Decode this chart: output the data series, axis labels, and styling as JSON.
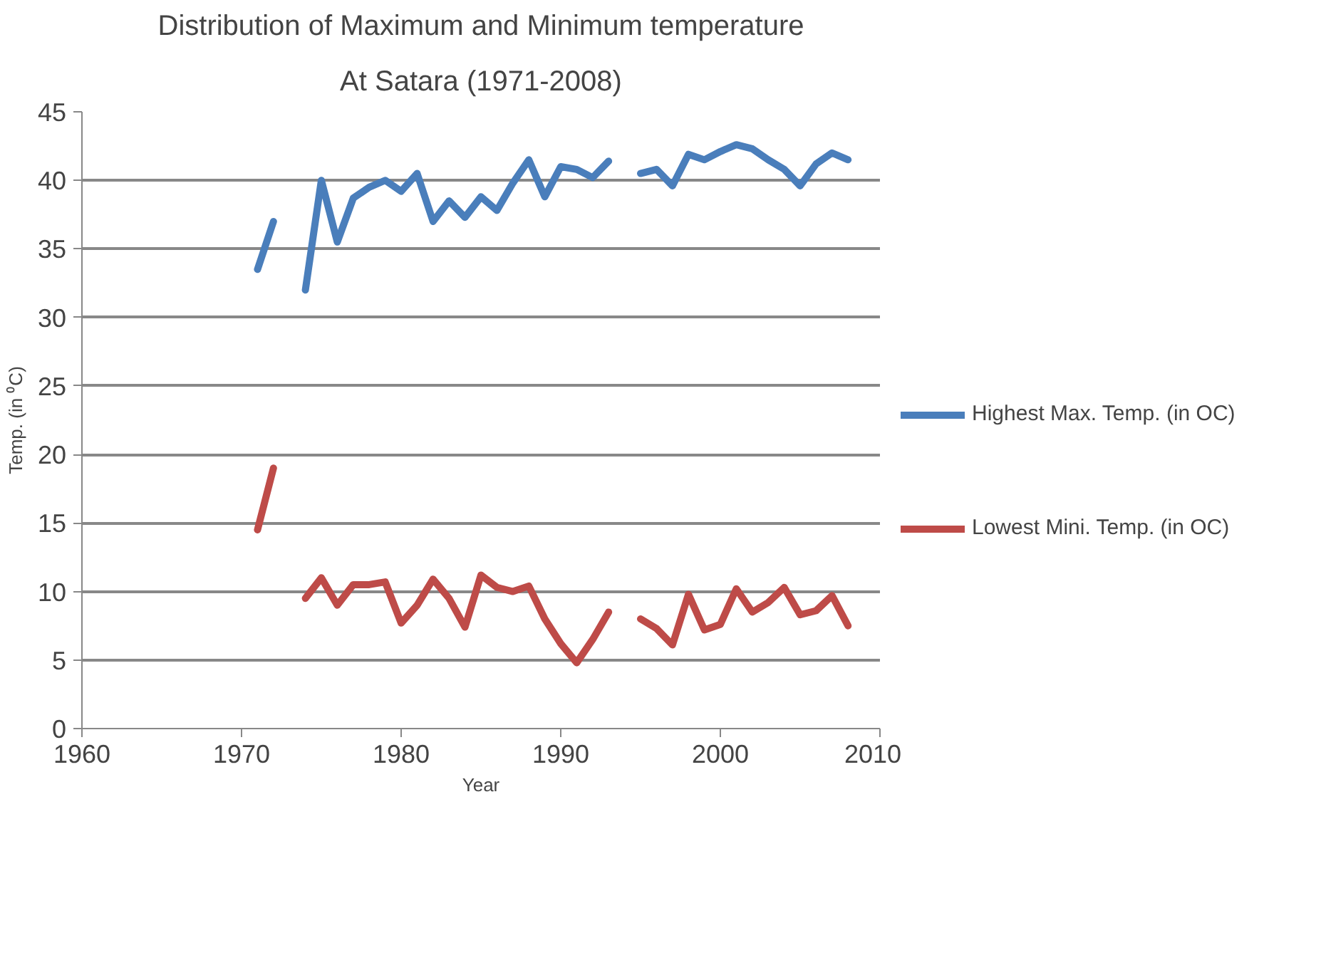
{
  "chart_data": {
    "type": "line",
    "title": "Distribution of Maximum and Minimum temperature",
    "subtitle": "At Satara (1971-2008)",
    "xlabel": "Year",
    "ylabel": "Temp. (in ⁰C)",
    "x": [
      1971,
      1972,
      1973,
      1974,
      1975,
      1976,
      1977,
      1978,
      1979,
      1980,
      1981,
      1982,
      1983,
      1984,
      1985,
      1986,
      1987,
      1988,
      1989,
      1990,
      1991,
      1992,
      1993,
      1994,
      1995,
      1996,
      1997,
      1998,
      1999,
      2000,
      2001,
      2002,
      2003,
      2004,
      2005,
      2006,
      2007,
      2008
    ],
    "series": [
      {
        "name": "Highest Max. Temp. (in OC)",
        "color": "#4a7ebb",
        "values": [
          33.5,
          37,
          null,
          32,
          40,
          35.5,
          38.7,
          39.5,
          40,
          39.2,
          40.5,
          37,
          38.5,
          37.3,
          38.8,
          37.8,
          39.8,
          41.5,
          38.8,
          41,
          40.8,
          40.2,
          41.4,
          null,
          40.5,
          40.8,
          39.6,
          41.9,
          41.5,
          42.1,
          42.6,
          42.3,
          41.5,
          40.8,
          39.6,
          41.2,
          42,
          41.5
        ]
      },
      {
        "name": "Lowest Mini. Temp. (in OC)",
        "color": "#be4b48",
        "values": [
          14.5,
          19,
          null,
          9.5,
          11,
          9,
          10.5,
          10.5,
          10.7,
          7.7,
          9,
          10.9,
          9.5,
          7.4,
          11.2,
          10.3,
          10,
          10.4,
          8,
          6.2,
          4.8,
          6.5,
          8.5,
          null,
          8,
          7.3,
          6.1,
          9.8,
          7.2,
          7.6,
          10.2,
          8.5,
          9.2,
          10.3,
          8.3,
          8.6,
          9.7,
          7.5
        ]
      }
    ],
    "xlim": [
      1960,
      2010
    ],
    "xticks": [
      1960,
      1970,
      1980,
      1990,
      2000,
      2010
    ],
    "ylim": [
      0,
      45
    ],
    "yticks": [
      0,
      5,
      10,
      15,
      20,
      25,
      30,
      35,
      40,
      45
    ],
    "grid": "y",
    "legend": "right",
    "marker": "none",
    "line_style": "solid"
  }
}
